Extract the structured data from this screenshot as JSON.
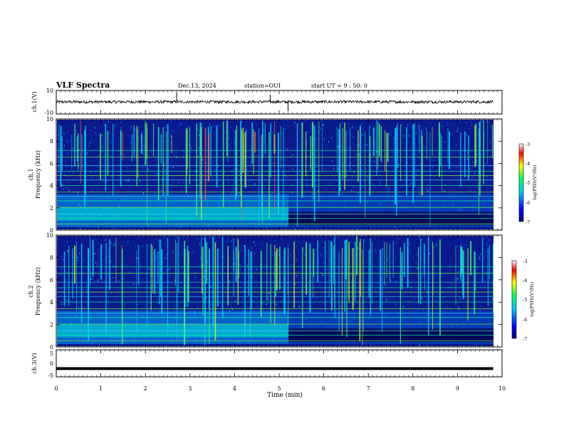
{
  "header": {
    "title": "VLF Spectra",
    "date": "Dec.13, 2024",
    "station": "station=OUI",
    "start_time": "start UT =  9 : 50: 0"
  },
  "colors": {
    "spectrogram_low": "#0a1a8c",
    "spectrogram_mid": "#00c8ff",
    "spectrogram_high": "#ffff00",
    "colorbar": [
      "#000080",
      "#0000ff",
      "#00c0ff",
      "#00ff80",
      "#ffff00",
      "#ff0000",
      "#ffffff"
    ]
  },
  "chart_data": [
    {
      "type": "line",
      "panel": "ch1-waveform",
      "ylabel": "ch.1(V)",
      "ylim": [
        -10,
        10
      ],
      "yticks": [
        "10",
        "-10"
      ],
      "x": [
        0,
        1,
        2,
        3,
        4,
        5,
        6,
        7,
        8,
        9,
        9.8
      ],
      "y": [
        0,
        0,
        0,
        0,
        0,
        0,
        0,
        0,
        0,
        0,
        0
      ],
      "spikes": [
        {
          "x": 2.7,
          "y": 8
        },
        {
          "x": 4.8,
          "y": 6
        },
        {
          "x": 5.2,
          "y": -8
        }
      ]
    },
    {
      "type": "heatmap",
      "panel": "ch1-spectrogram",
      "ylabel": "ch.1\nFrequency (kHz)",
      "ylim": [
        0,
        10
      ],
      "yticks": [
        "0",
        "2",
        "4",
        "6",
        "8",
        "10"
      ],
      "xlim": [
        0,
        9.8
      ],
      "colorbar": {
        "label": "log(PSD)(V²/Hz)",
        "ticks": [
          "-3",
          "-4",
          "-5",
          "-6",
          "-7"
        ],
        "range": [
          -7,
          -3
        ]
      },
      "band_change_min": 5.2
    },
    {
      "type": "heatmap",
      "panel": "ch2-spectrogram",
      "ylabel": "ch.2\nFrequency (kHz)",
      "ylim": [
        0,
        10
      ],
      "yticks": [
        "0",
        "2",
        "4",
        "6",
        "8",
        "10"
      ],
      "xlim": [
        0,
        9.8
      ],
      "colorbar": {
        "label": "log(PSD)(V²/Hz)",
        "ticks": [
          "-3",
          "-4",
          "-5",
          "-6",
          "-7"
        ],
        "range": [
          -7,
          -3
        ]
      },
      "band_change_min": 5.2
    },
    {
      "type": "line",
      "panel": "ch3-waveform",
      "ylabel": "ch.3(V)",
      "ylim": [
        -5,
        5
      ],
      "yticks": [
        "5",
        "0",
        "-5"
      ],
      "x": [
        0,
        9.8
      ],
      "y": [
        -2,
        -2
      ]
    }
  ],
  "xaxis": {
    "label": "Time (min)",
    "xlim": [
      0,
      10
    ],
    "ticks": [
      "0",
      "1",
      "2",
      "3",
      "4",
      "5",
      "6",
      "7",
      "8",
      "9",
      "10"
    ]
  }
}
